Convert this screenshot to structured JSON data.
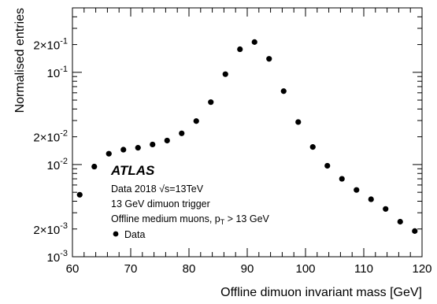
{
  "chart_data": {
    "type": "scatter",
    "xlabel": "Offline dimuon invariant mass [GeV]",
    "ylabel": "Normalised entries",
    "xlim": [
      60,
      120
    ],
    "ylim": [
      0.001,
      0.5
    ],
    "yscale": "log",
    "grid": false,
    "x_ticks": [
      "60",
      "70",
      "80",
      "90",
      "100",
      "110",
      "120"
    ],
    "y_ticks": [
      {
        "value": 0.001,
        "label": "10",
        "exp": "-3"
      },
      {
        "value": 0.002,
        "label": "2×10",
        "exp": "-3"
      },
      {
        "value": 0.01,
        "label": "10",
        "exp": "-2"
      },
      {
        "value": 0.02,
        "label": "2×10",
        "exp": "-2"
      },
      {
        "value": 0.1,
        "label": "10",
        "exp": "-1"
      },
      {
        "value": 0.2,
        "label": "2×10",
        "exp": "-1"
      }
    ],
    "series": [
      {
        "name": "Data",
        "color": "#000000",
        "x": [
          61.25,
          63.75,
          66.25,
          68.75,
          71.25,
          73.75,
          76.25,
          78.75,
          81.25,
          83.75,
          86.25,
          88.75,
          91.25,
          93.75,
          96.25,
          98.75,
          101.25,
          103.75,
          106.25,
          108.75,
          111.25,
          113.75,
          116.25,
          118.75
        ],
        "y": [
          0.0047,
          0.0095,
          0.0131,
          0.0145,
          0.0152,
          0.0165,
          0.0182,
          0.0218,
          0.0296,
          0.0475,
          0.0955,
          0.178,
          0.213,
          0.14,
          0.0625,
          0.0289,
          0.0155,
          0.0097,
          0.007,
          0.0053,
          0.0042,
          0.0033,
          0.0024,
          0.0019
        ]
      }
    ],
    "annotations": {
      "atlas": "ATLAS",
      "line1_pre": "Data 2018 ",
      "line1_sqrt": "√",
      "line1_post": "s=13TeV",
      "line2": "13 GeV dimuon trigger",
      "line3_pre": "Offline medium muons, p",
      "line3_sub": "T",
      "line3_post": " > 13 GeV"
    },
    "legend": {
      "label": "Data",
      "placement": "bottom-left"
    }
  }
}
